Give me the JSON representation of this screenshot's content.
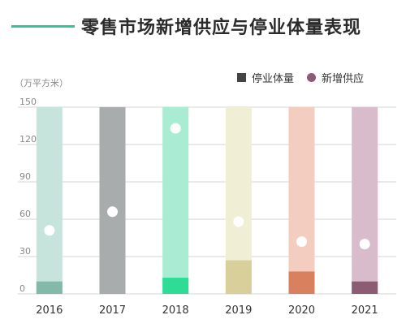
{
  "title": "零售市场新增供应与停业体量表现",
  "unit_label": "（万平方米）",
  "legend": {
    "closure_label": "停业体量",
    "supply_label": "新增供应",
    "closure_color": "#444444",
    "supply_color": "#8c5b74"
  },
  "chart_data": {
    "type": "bar",
    "categories": [
      "2016",
      "2017",
      "2018",
      "2019",
      "2020",
      "2021"
    ],
    "ylim": [
      0,
      150
    ],
    "yticks": [
      0,
      30,
      60,
      90,
      120,
      150
    ],
    "series": [
      {
        "name": "停业体量",
        "values": [
          10,
          0,
          13,
          27,
          18,
          10
        ]
      },
      {
        "name": "新增供应",
        "values": [
          51,
          66,
          133,
          58,
          42,
          40
        ]
      }
    ],
    "bar_colors_light": [
      "#c6e3dc",
      "#a9acad",
      "#a9ecd3",
      "#f1eed6",
      "#f3cdbf",
      "#d9bccb"
    ],
    "bar_colors_dark": [
      "#83b9a8",
      "#8f9294",
      "#2fdc96",
      "#d8cf9a",
      "#d9805f",
      "#8c5b74"
    ],
    "grid": true,
    "legend_position": "top-right"
  }
}
